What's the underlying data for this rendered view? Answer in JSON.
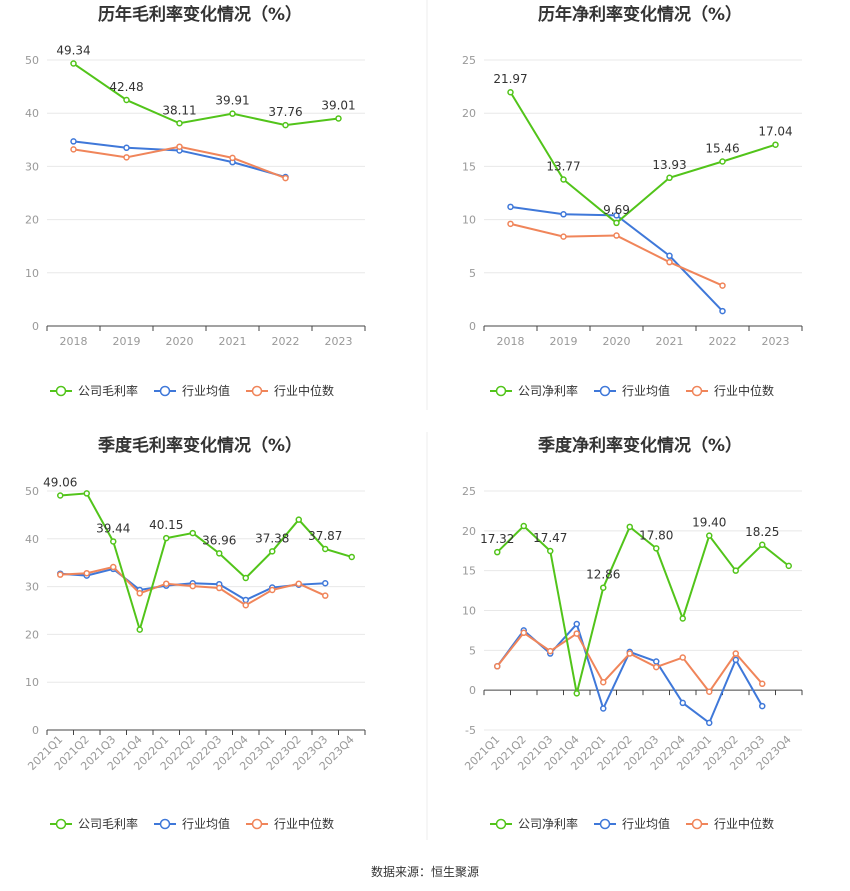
{
  "colors": {
    "company": "#52c41a",
    "industry_avg": "#3f78d9",
    "industry_median": "#f0855a"
  },
  "legend_names": {
    "gross": [
      "公司毛利率",
      "行业均值",
      "行业中位数"
    ],
    "net": [
      "公司净利率",
      "行业均值",
      "行业中位数"
    ]
  },
  "source": "数据来源：恒生聚源",
  "chart_data": [
    {
      "id": "annual-gross",
      "type": "line",
      "title": "历年毛利率变化情况（%）",
      "categories": [
        "2018",
        "2019",
        "2020",
        "2021",
        "2022",
        "2023"
      ],
      "ylim": [
        0,
        50
      ],
      "yticks": [
        0,
        10,
        20,
        30,
        40,
        50
      ],
      "grid": true,
      "legend": "bottom",
      "series": [
        {
          "name": "公司毛利率",
          "values": [
            49.34,
            42.48,
            38.11,
            39.91,
            37.76,
            39.01
          ],
          "labels": [
            "49.34",
            "42.48",
            "38.11",
            "39.91",
            "37.76",
            "39.01"
          ]
        },
        {
          "name": "行业均值",
          "values": [
            34.7,
            33.5,
            33.0,
            30.8,
            28.0,
            null
          ]
        },
        {
          "name": "行业中位数",
          "values": [
            33.2,
            31.7,
            33.7,
            31.6,
            27.8,
            null
          ]
        }
      ]
    },
    {
      "id": "annual-net",
      "type": "line",
      "title": "历年净利率变化情况（%）",
      "categories": [
        "2018",
        "2019",
        "2020",
        "2021",
        "2022",
        "2023"
      ],
      "ylim": [
        0,
        25
      ],
      "yticks": [
        0,
        5,
        10,
        15,
        20,
        25
      ],
      "grid": true,
      "legend": "bottom",
      "series": [
        {
          "name": "公司净利率",
          "values": [
            21.97,
            13.77,
            9.69,
            13.93,
            15.46,
            17.04
          ],
          "labels": [
            "21.97",
            "13.77",
            "9.69",
            "13.93",
            "15.46",
            "17.04"
          ]
        },
        {
          "name": "行业均值",
          "values": [
            11.2,
            10.5,
            10.4,
            6.6,
            1.4,
            null
          ]
        },
        {
          "name": "行业中位数",
          "values": [
            9.6,
            8.4,
            8.5,
            6.0,
            3.8,
            null
          ]
        }
      ]
    },
    {
      "id": "quarterly-gross",
      "type": "line",
      "title": "季度毛利率变化情况（%）",
      "categories": [
        "2021Q1",
        "2021Q2",
        "2021Q3",
        "2021Q4",
        "2022Q1",
        "2022Q2",
        "2022Q3",
        "2022Q4",
        "2023Q1",
        "2023Q2",
        "2023Q3",
        "2023Q4"
      ],
      "ylim": [
        0,
        50
      ],
      "yticks": [
        0,
        10,
        20,
        30,
        40,
        50
      ],
      "grid": true,
      "legend": "bottom",
      "series": [
        {
          "name": "公司毛利率",
          "values": [
            49.06,
            49.5,
            39.44,
            21.0,
            40.15,
            41.2,
            36.96,
            31.8,
            37.38,
            44.0,
            37.87,
            36.2
          ],
          "labels": [
            "49.06",
            "",
            "39.44",
            "",
            "40.15",
            "",
            "36.96",
            "",
            "37.38",
            "",
            "37.87",
            ""
          ]
        },
        {
          "name": "行业均值",
          "values": [
            32.7,
            32.3,
            33.7,
            29.3,
            30.2,
            30.7,
            30.5,
            27.2,
            29.8,
            30.4,
            30.7,
            null
          ]
        },
        {
          "name": "行业中位数",
          "values": [
            32.5,
            32.8,
            34.1,
            28.6,
            30.6,
            30.1,
            29.7,
            26.1,
            29.3,
            30.6,
            28.1,
            null
          ]
        }
      ]
    },
    {
      "id": "quarterly-net",
      "type": "line",
      "title": "季度净利率变化情况（%）",
      "categories": [
        "2021Q1",
        "2021Q2",
        "2021Q3",
        "2021Q4",
        "2022Q1",
        "2022Q2",
        "2022Q3",
        "2022Q4",
        "2023Q1",
        "2023Q2",
        "2023Q3",
        "2023Q4"
      ],
      "ylim": [
        -5,
        25
      ],
      "yticks": [
        -5,
        0,
        5,
        10,
        15,
        20,
        25
      ],
      "grid": true,
      "legend": "bottom",
      "series": [
        {
          "name": "公司净利率",
          "values": [
            17.32,
            20.6,
            17.47,
            -0.4,
            12.86,
            20.5,
            17.8,
            9.0,
            19.4,
            15.0,
            18.25,
            15.6
          ],
          "labels": [
            "17.32",
            "",
            "17.47",
            "",
            "12.86",
            "",
            "17.80",
            "",
            "19.40",
            "",
            "18.25",
            ""
          ]
        },
        {
          "name": "行业均值",
          "values": [
            3.0,
            7.5,
            4.6,
            8.3,
            -2.3,
            4.8,
            3.6,
            -1.6,
            -4.1,
            3.8,
            -2.0,
            null
          ]
        },
        {
          "name": "行业中位数",
          "values": [
            3.0,
            7.2,
            4.9,
            7.1,
            1.0,
            4.6,
            2.9,
            4.1,
            -0.2,
            4.6,
            0.8,
            null
          ]
        }
      ]
    }
  ]
}
